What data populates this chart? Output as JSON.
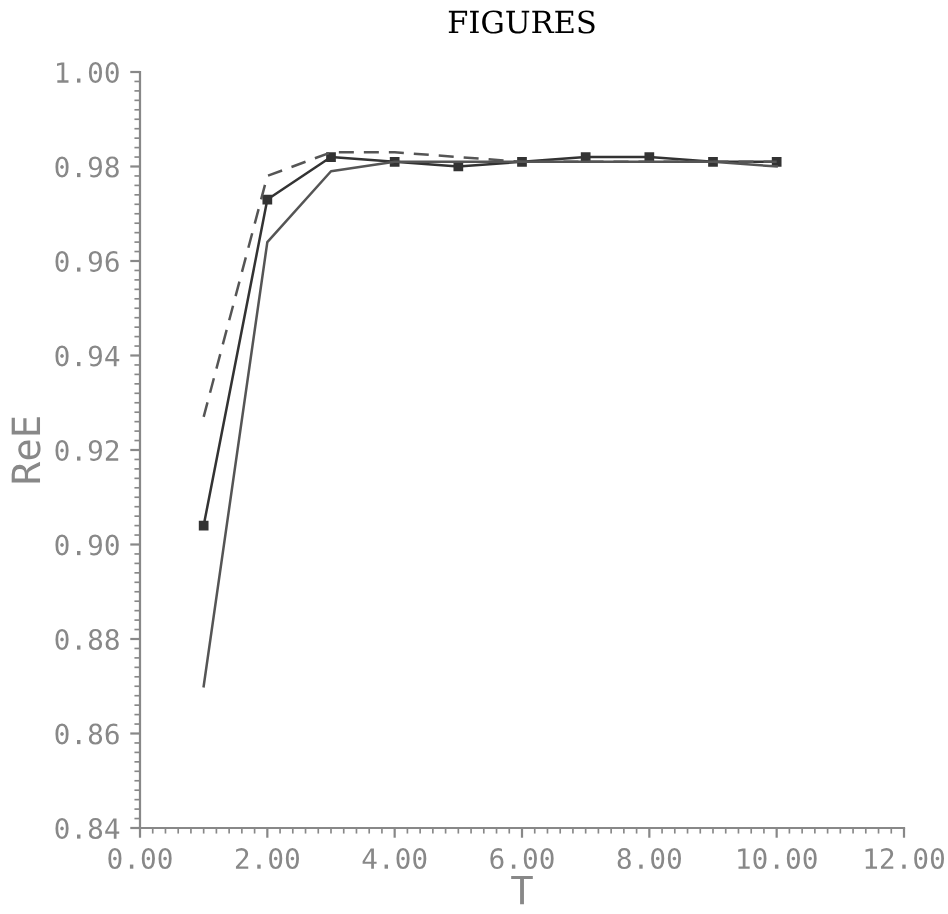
{
  "chart_data": {
    "type": "line",
    "title": "FIGURES",
    "xlabel": "T",
    "ylabel": "ReE",
    "x": [
      1,
      2,
      3,
      4,
      5,
      6,
      7,
      8,
      9,
      10
    ],
    "series": [
      {
        "color": "#333333",
        "marker": "square",
        "line_style": "solid",
        "values": [
          0.904,
          0.973,
          0.982,
          0.981,
          0.98,
          0.981,
          0.982,
          0.982,
          0.981,
          0.981
        ]
      },
      {
        "color": "#555555",
        "marker": "none",
        "line_style": "solid",
        "values": [
          0.87,
          0.964,
          0.979,
          0.981,
          0.981,
          0.981,
          0.981,
          0.981,
          0.981,
          0.98
        ]
      },
      {
        "color": "#555555",
        "marker": "none",
        "line_style": "dashed",
        "values": [
          0.927,
          0.978,
          0.983,
          0.983,
          0.982,
          0.981,
          0.981,
          0.981,
          0.981,
          0.981
        ]
      }
    ],
    "xlim": [
      0,
      12
    ],
    "ylim": [
      0.84,
      1.0
    ],
    "xticks": [
      {
        "value": 0,
        "label": "0.00"
      },
      {
        "value": 2,
        "label": "2.00"
      },
      {
        "value": 4,
        "label": "4.00"
      },
      {
        "value": 6,
        "label": "6.00"
      },
      {
        "value": 8,
        "label": "8.00"
      },
      {
        "value": 10,
        "label": "10.00"
      },
      {
        "value": 12,
        "label": "12.00"
      }
    ],
    "yticks": [
      0.84,
      0.86,
      0.88,
      {
        "value": 0.9,
        "label": "0.90"
      },
      0.92,
      0.94,
      0.96,
      0.98,
      {
        "value": 1.0,
        "label": "1.00"
      }
    ],
    "grid": false,
    "legend": false
  }
}
